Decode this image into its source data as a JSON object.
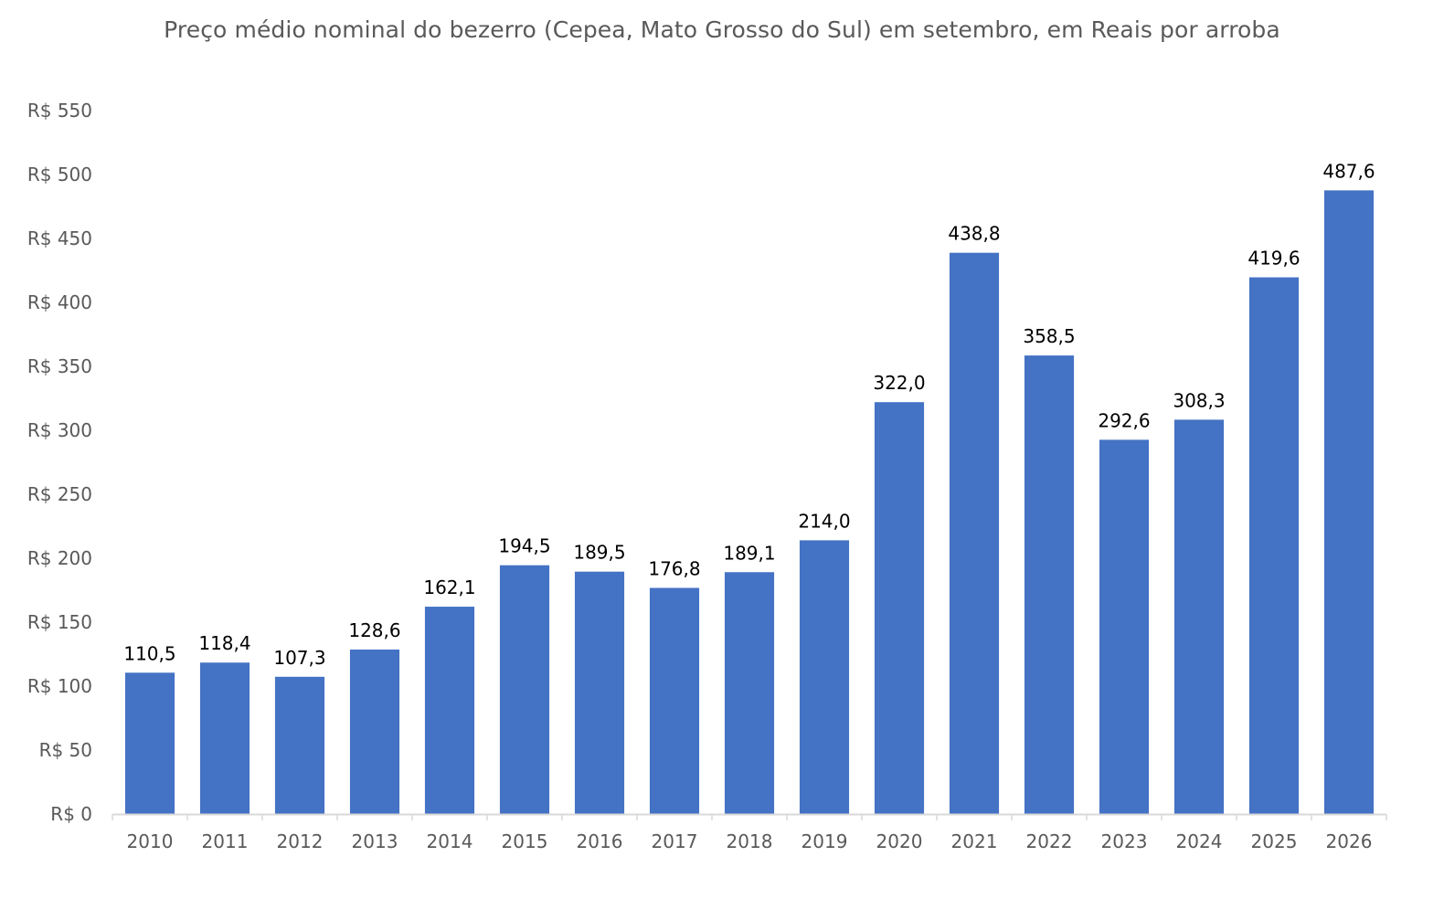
{
  "chart_data": {
    "type": "bar",
    "title": "Preço médio nominal do bezerro (Cepea, Mato Grosso do Sul) em setembro, em Reais por arroba",
    "xlabel": "",
    "ylabel": "",
    "categories": [
      "2010",
      "2011",
      "2012",
      "2013",
      "2014",
      "2015",
      "2016",
      "2017",
      "2018",
      "2019",
      "2020",
      "2021",
      "2022",
      "2023",
      "2024",
      "2025",
      "2026"
    ],
    "values": [
      110.5,
      118.4,
      107.3,
      128.6,
      162.1,
      194.5,
      189.5,
      176.8,
      189.1,
      214.0,
      322.0,
      438.8,
      358.5,
      292.6,
      308.3,
      419.6,
      487.6
    ],
    "value_labels": [
      "110,5",
      "118,4",
      "107,3",
      "128,6",
      "162,1",
      "194,5",
      "189,5",
      "176,8",
      "189,1",
      "214,0",
      "322,0",
      "438,8",
      "358,5",
      "292,6",
      "308,3",
      "419,6",
      "487,6"
    ],
    "ylim": [
      0,
      550
    ],
    "yticks": [
      0,
      50,
      100,
      150,
      200,
      250,
      300,
      350,
      400,
      450,
      500,
      550
    ],
    "ytick_labels": [
      "R$ 0",
      "R$ 50",
      "R$ 100",
      "R$ 150",
      "R$ 200",
      "R$ 250",
      "R$ 300",
      "R$ 350",
      "R$ 400",
      "R$ 450",
      "R$ 500",
      "R$ 550"
    ],
    "grid": false,
    "legend": "none",
    "bar_color": "#4472C4",
    "axis_color": "#D9D9D9"
  }
}
